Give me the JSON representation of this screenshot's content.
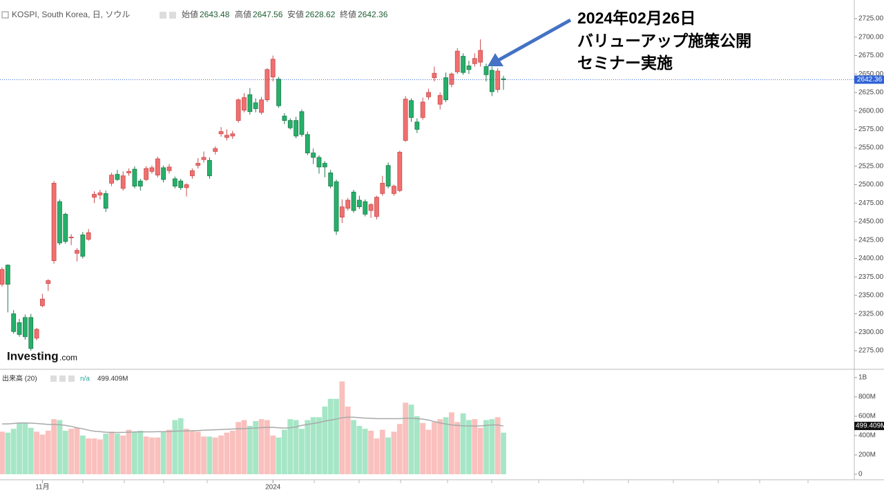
{
  "chart_data": [
    {
      "type": "candlestick",
      "title": "KOSPI, South Korea, 日, ソウル",
      "ohlc_labels": [
        "始値",
        "高値",
        "安値",
        "終値"
      ],
      "categories": [
        null,
        null,
        null,
        null,
        null,
        null,
        null,
        "11月",
        null,
        null,
        null,
        null,
        null,
        null,
        null,
        null,
        null,
        null,
        null,
        null,
        null,
        null,
        null,
        null,
        null,
        null,
        null,
        null,
        null,
        null,
        null,
        null,
        null,
        null,
        null,
        null,
        null,
        null,
        null,
        null,
        null,
        null,
        null,
        null,
        null,
        null,
        null,
        "2024",
        null,
        null,
        null,
        null,
        null,
        null,
        null,
        null,
        null,
        null,
        null,
        null,
        null,
        null,
        null,
        null,
        null,
        null,
        null,
        null,
        null,
        null,
        null,
        null,
        null,
        null,
        null,
        null,
        null,
        null,
        null,
        null,
        null,
        null,
        null,
        null,
        null,
        null,
        null,
        null
      ],
      "series": [
        {
          "name": "KOSPI",
          "up_color": "#f07070",
          "down_color": "#26b06a",
          "open": [
            2365,
            2391,
            2325,
            2313,
            2320,
            2320,
            2292,
            2336,
            2366,
            2397,
            2477,
            2460,
            2428,
            2407,
            2432,
            2426,
            2483,
            2486,
            2488,
            2502,
            2514,
            2495,
            2516,
            2521,
            2505,
            2507,
            2518,
            2513,
            2523,
            2519,
            2508,
            2505,
            2496,
            2512,
            2526,
            2534,
            2533,
            2545,
            2569,
            2564,
            2566,
            2587,
            2601,
            2622,
            2611,
            2598,
            2615,
            2646,
            2643,
            2593,
            2587,
            2587,
            2599,
            2568,
            2543,
            2537,
            2529,
            2516,
            2504,
            2456,
            2468,
            2490,
            2479,
            2477,
            2465,
            2457,
            2488,
            2526,
            2488,
            2492,
            2560,
            2614,
            2585,
            2591,
            2619,
            2645,
            2609,
            2645,
            2636,
            2653,
            2674,
            2661,
            2664,
            2666,
            2660,
            2655,
            2629,
            2643.48
          ],
          "high": [
            2388,
            2392,
            2330,
            2318,
            2324,
            2325,
            2306,
            2352,
            2372,
            2505,
            2480,
            2462,
            2433,
            2414,
            2436,
            2440,
            2491,
            2493,
            2492,
            2516,
            2520,
            2518,
            2522,
            2525,
            2508,
            2525,
            2526,
            2538,
            2526,
            2528,
            2511,
            2508,
            2502,
            2522,
            2536,
            2545,
            2537,
            2552,
            2578,
            2575,
            2573,
            2617,
            2624,
            2631,
            2617,
            2619,
            2658,
            2675,
            2646,
            2597,
            2590,
            2592,
            2602,
            2572,
            2549,
            2540,
            2532,
            2520,
            2507,
            2480,
            2482,
            2493,
            2485,
            2480,
            2475,
            2485,
            2512,
            2530,
            2500,
            2546,
            2620,
            2617,
            2590,
            2618,
            2630,
            2660,
            2625,
            2652,
            2652,
            2685,
            2678,
            2668,
            2678,
            2697,
            2664,
            2660,
            2658,
            2647.56
          ],
          "low": [
            2362,
            2327,
            2298,
            2294,
            2290,
            2275,
            2289,
            2334,
            2356,
            2393,
            2418,
            2420,
            2418,
            2396,
            2400,
            2424,
            2475,
            2480,
            2463,
            2498,
            2505,
            2492,
            2512,
            2495,
            2492,
            2505,
            2515,
            2510,
            2503,
            2515,
            2495,
            2493,
            2484,
            2508,
            2522,
            2530,
            2508,
            2541,
            2565,
            2560,
            2562,
            2584,
            2598,
            2595,
            2598,
            2595,
            2612,
            2640,
            2604,
            2582,
            2575,
            2563,
            2565,
            2540,
            2528,
            2515,
            2510,
            2495,
            2432,
            2448,
            2465,
            2462,
            2467,
            2457,
            2455,
            2453,
            2485,
            2495,
            2485,
            2490,
            2558,
            2585,
            2570,
            2588,
            2615,
            2640,
            2602,
            2612,
            2632,
            2650,
            2649,
            2650,
            2660,
            2660,
            2640,
            2620,
            2625,
            2628.62
          ],
          "close": [
            2385,
            2365,
            2301,
            2297,
            2294,
            2278,
            2304,
            2345,
            2370,
            2502,
            2421,
            2423,
            2429,
            2411,
            2403,
            2435,
            2487,
            2489,
            2468,
            2513,
            2507,
            2512,
            2518,
            2498,
            2498,
            2522,
            2523,
            2535,
            2507,
            2524,
            2498,
            2496,
            2500,
            2519,
            2529,
            2537,
            2512,
            2549,
            2572,
            2567,
            2569,
            2615,
            2618,
            2599,
            2603,
            2615,
            2656,
            2670,
            2607,
            2587,
            2577,
            2566,
            2568,
            2543,
            2537,
            2524,
            2524,
            2498,
            2437,
            2470,
            2479,
            2465,
            2470,
            2460,
            2473,
            2483,
            2502,
            2498,
            2498,
            2544,
            2616,
            2591,
            2575,
            2612,
            2625,
            2651,
            2621,
            2615,
            2650,
            2681,
            2652,
            2656,
            2671,
            2682,
            2649,
            2626,
            2654,
            2642.36
          ]
        }
      ],
      "ylim": [
        2249.8,
        2750.3
      ],
      "yticks": [
        {
          "value": 2275,
          "label": "2275.00"
        },
        {
          "value": 2300,
          "label": "2300.00"
        },
        {
          "value": 2325,
          "label": "2325.00"
        },
        {
          "value": 2350,
          "label": "2350.00"
        },
        {
          "value": 2375,
          "label": "2375.00"
        },
        {
          "value": 2400,
          "label": "2400.00"
        },
        {
          "value": 2425,
          "label": "2425.00"
        },
        {
          "value": 2450,
          "label": "2450.00"
        },
        {
          "value": 2475,
          "label": "2475.00"
        },
        {
          "value": 2500,
          "label": "2500.00"
        },
        {
          "value": 2525,
          "label": "2525.00"
        },
        {
          "value": 2550,
          "label": "2550.00"
        },
        {
          "value": 2575,
          "label": "2575.00"
        },
        {
          "value": 2600,
          "label": "2600.00"
        },
        {
          "value": 2625,
          "label": "2625.00"
        },
        {
          "value": 2650,
          "label": "2650.00"
        },
        {
          "value": 2675,
          "label": "2675.00"
        },
        {
          "value": 2700,
          "label": "2700.00"
        },
        {
          "value": 2725,
          "label": "2725.00"
        }
      ],
      "grid": false,
      "price_line_color": "#2f62d6",
      "annotation": [
        "2024年02月26日",
        "バリューアップ施策公開",
        "セミナー実施"
      ]
    },
    {
      "type": "bar",
      "legend": "出来高 (20)",
      "status": "n/a",
      "up_color": "#f9c0bd",
      "down_color": "#a6e6c6",
      "values": [
        440,
        430,
        470,
        530,
        530,
        480,
        440,
        410,
        450,
        570,
        560,
        450,
        470,
        480,
        400,
        370,
        370,
        360,
        420,
        440,
        420,
        400,
        460,
        440,
        450,
        390,
        380,
        380,
        440,
        460,
        560,
        580,
        470,
        450,
        440,
        390,
        390,
        380,
        400,
        430,
        450,
        540,
        560,
        500,
        550,
        570,
        560,
        400,
        380,
        460,
        570,
        560,
        470,
        560,
        590,
        590,
        700,
        780,
        780,
        960,
        700,
        560,
        500,
        470,
        450,
        370,
        460,
        380,
        440,
        520,
        740,
        720,
        600,
        530,
        460,
        540,
        570,
        590,
        640,
        540,
        630,
        560,
        570,
        480,
        560,
        570,
        590,
        430
      ],
      "ma": {
        "color": "#a8a8a8",
        "values": [
          520,
          520,
          525,
          530,
          530,
          528,
          525,
          520,
          515,
          515,
          512,
          505,
          495,
          480,
          470,
          455,
          445,
          440,
          435,
          432,
          432,
          433,
          435,
          437,
          438,
          438,
          438,
          440,
          440,
          442,
          445,
          447,
          448,
          450,
          452,
          455,
          458,
          460,
          462,
          465,
          468,
          470,
          472,
          475,
          478,
          482,
          485,
          485,
          480,
          478,
          480,
          490,
          505,
          515,
          525,
          535,
          550,
          560,
          570,
          585,
          590,
          590,
          585,
          580,
          578,
          575,
          575,
          575,
          575,
          575,
          578,
          580,
          575,
          570,
          560,
          545,
          530,
          520,
          510,
          505,
          500,
          500,
          498,
          500,
          505,
          510,
          510,
          499.409
        ],
        "last_label": "499.409M"
      },
      "ylim": [
        -57,
        1071
      ],
      "yticks": [
        0,
        {
          "value": 200,
          "label": "200M"
        },
        {
          "value": 400,
          "label": "400M"
        },
        {
          "value": 600,
          "label": "600M"
        },
        {
          "value": 800,
          "label": "800M"
        },
        {
          "value": 1000,
          "label": "1B"
        }
      ]
    }
  ],
  "logo": {
    "brand": "Investing",
    "suffix": ".com"
  }
}
